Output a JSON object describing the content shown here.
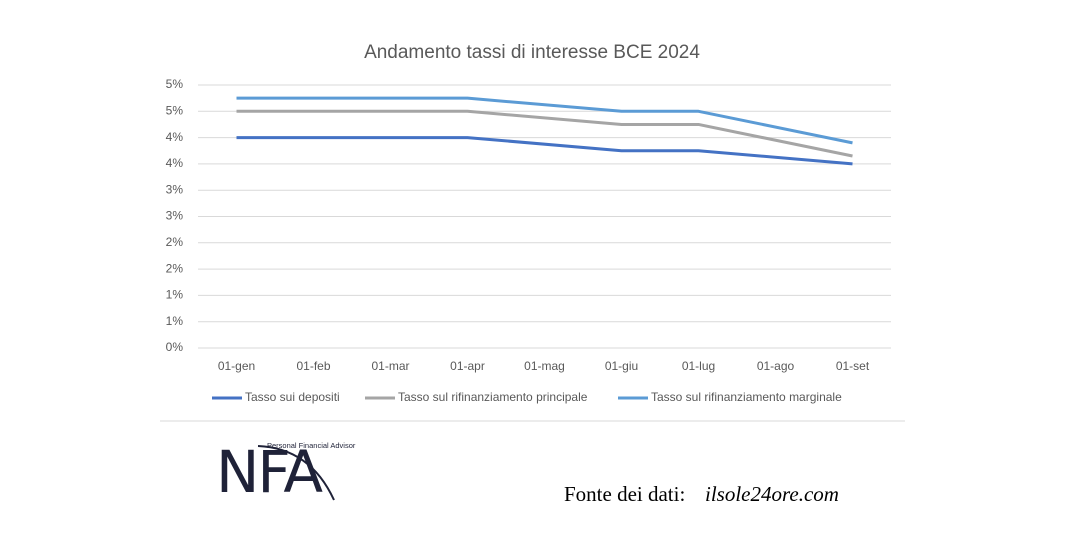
{
  "chart_data": {
    "type": "line",
    "title": "Andamento tassi di interesse BCE 2024",
    "categories": [
      "01-gen",
      "01-feb",
      "01-mar",
      "01-apr",
      "01-mag",
      "01-giu",
      "01-lug",
      "01-ago",
      "01-set"
    ],
    "series": [
      {
        "name": "Tasso sui depositi",
        "color": "#4472c4",
        "values": [
          4.0,
          4.0,
          4.0,
          4.0,
          null,
          3.75,
          3.75,
          null,
          3.5
        ]
      },
      {
        "name": "Tasso sul rifinanziamento principale",
        "color": "#a5a5a5",
        "values": [
          4.5,
          4.5,
          4.5,
          4.5,
          null,
          4.25,
          4.25,
          null,
          3.65
        ]
      },
      {
        "name": "Tasso sul rifinanziamento marginale",
        "color": "#5b9bd5",
        "values": [
          4.75,
          4.75,
          4.75,
          4.75,
          null,
          4.5,
          4.5,
          null,
          3.9
        ]
      }
    ],
    "ylim": [
      0,
      5
    ],
    "yticks": [
      {
        "value": 0,
        "label": "0%"
      },
      {
        "value": 0.5,
        "label": "1%"
      },
      {
        "value": 1,
        "label": "1%"
      },
      {
        "value": 1.5,
        "label": "2%"
      },
      {
        "value": 2,
        "label": "2%"
      },
      {
        "value": 2.5,
        "label": "3%"
      },
      {
        "value": 3,
        "label": "3%"
      },
      {
        "value": 3.5,
        "label": "4%"
      },
      {
        "value": 4,
        "label": "4%"
      },
      {
        "value": 4.5,
        "label": "5%"
      },
      {
        "value": 5,
        "label": "5%"
      }
    ],
    "grid": true,
    "legend": "bottom",
    "connect_gaps": true
  },
  "logo": {
    "name": "NFA",
    "tagline": "Personal Financial Advisor"
  },
  "source": {
    "label": "Fonte dei dati:",
    "name": "ilsole24ore.com"
  }
}
